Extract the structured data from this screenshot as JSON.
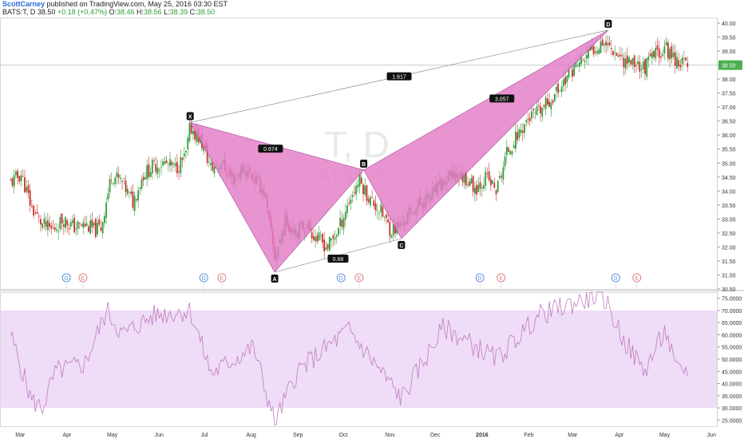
{
  "header": {
    "author": "ScottCarney",
    "published": " published on TradingView.com, May 25, 2016 03:30 EST",
    "symbol": "BATS:T, D",
    "last": "38.50",
    "change": "+0.18 (+0.47%)",
    "o_label": "O:",
    "o_value": "38.46",
    "h_label": "H:",
    "h_value": "38.56",
    "l_label": "L:",
    "l_value": "38.39",
    "c_label": "C:",
    "c_value": "38.50"
  },
  "colors": {
    "up": "#2e9d3a",
    "down": "#c9302c",
    "pattern_fill": "#e27cc7",
    "rsi_line": "#c07bbd",
    "rsi_band": "#efdcf7",
    "price_label_bg": "#4caf50"
  },
  "chart_data": [
    {
      "type": "candlestick",
      "title": "T, D",
      "watermark_title": "T, D",
      "watermark_subtitle": "AT&T INC",
      "ylim": [
        30.5,
        40.2
      ],
      "y_ticks": [
        "30.50",
        "31.00",
        "31.50",
        "32.00",
        "32.50",
        "33.00",
        "33.50",
        "34.00",
        "34.50",
        "35.00",
        "35.50",
        "36.00",
        "36.50",
        "37.00",
        "37.50",
        "38.00",
        "38.50",
        "39.00",
        "39.50",
        "40.00"
      ],
      "last_price_label": "38.50",
      "x_ticks": [
        "Mar",
        "Apr",
        "May",
        "Jun",
        "Jul",
        "Aug",
        "Sep",
        "Oct",
        "Nov",
        "Dec",
        "2016",
        "Feb",
        "Mar",
        "Apr",
        "May",
        "Jun"
      ],
      "pattern": {
        "name": "bat",
        "points": [
          {
            "label": "X",
            "date": "2015-06-29",
            "price": 36.45
          },
          {
            "label": "A",
            "date": "2015-08-24",
            "price": 31.1
          },
          {
            "label": "B",
            "date": "2015-10-22",
            "price": 34.75
          },
          {
            "label": "C",
            "date": "2015-11-16",
            "price": 32.3
          },
          {
            "label": "D",
            "date": "2016-04-01",
            "price": 39.75
          }
        ],
        "ratios": [
          {
            "label": "0.674",
            "between": "XA-AB"
          },
          {
            "label": "0.68",
            "between": "AB-BC"
          },
          {
            "label": "3.057",
            "between": "BC-CD"
          },
          {
            "label": "1.617",
            "between": "XA-XD"
          }
        ]
      },
      "events": [
        {
          "type": "D",
          "month": "Apr"
        },
        {
          "type": "E",
          "month": "Apr"
        },
        {
          "type": "D",
          "month": "Jul"
        },
        {
          "type": "E",
          "month": "Jul"
        },
        {
          "type": "D",
          "month": "Oct"
        },
        {
          "type": "E",
          "month": "Oct"
        },
        {
          "type": "D",
          "month": "Jan"
        },
        {
          "type": "E",
          "month": "Jan"
        },
        {
          "type": "D",
          "month": "Apr"
        },
        {
          "type": "E",
          "month": "Apr"
        }
      ],
      "close_path": [
        {
          "date": "2015-03-02",
          "close": 34.3
        },
        {
          "date": "2015-03-09",
          "close": 34.6
        },
        {
          "date": "2015-03-16",
          "close": 33.4
        },
        {
          "date": "2015-03-23",
          "close": 32.8
        },
        {
          "date": "2015-03-30",
          "close": 32.6
        },
        {
          "date": "2015-04-06",
          "close": 33.0
        },
        {
          "date": "2015-04-13",
          "close": 32.7
        },
        {
          "date": "2015-04-20",
          "close": 32.8
        },
        {
          "date": "2015-04-27",
          "close": 32.6
        },
        {
          "date": "2015-05-01",
          "close": 32.7
        },
        {
          "date": "2015-05-08",
          "close": 34.6
        },
        {
          "date": "2015-05-15",
          "close": 34.3
        },
        {
          "date": "2015-05-22",
          "close": 33.6
        },
        {
          "date": "2015-05-29",
          "close": 34.6
        },
        {
          "date": "2015-06-05",
          "close": 34.9
        },
        {
          "date": "2015-06-12",
          "close": 35.0
        },
        {
          "date": "2015-06-19",
          "close": 34.8
        },
        {
          "date": "2015-06-26",
          "close": 35.2
        },
        {
          "date": "2015-06-29",
          "close": 36.3
        },
        {
          "date": "2015-07-06",
          "close": 35.8
        },
        {
          "date": "2015-07-13",
          "close": 34.8
        },
        {
          "date": "2015-07-20",
          "close": 35.0
        },
        {
          "date": "2015-07-27",
          "close": 34.4
        },
        {
          "date": "2015-08-03",
          "close": 34.8
        },
        {
          "date": "2015-08-10",
          "close": 34.5
        },
        {
          "date": "2015-08-17",
          "close": 34.0
        },
        {
          "date": "2015-08-24",
          "close": 31.6
        },
        {
          "date": "2015-08-31",
          "close": 32.9
        },
        {
          "date": "2015-09-08",
          "close": 32.6
        },
        {
          "date": "2015-09-14",
          "close": 32.8
        },
        {
          "date": "2015-09-21",
          "close": 32.3
        },
        {
          "date": "2015-09-28",
          "close": 32.0
        },
        {
          "date": "2015-10-05",
          "close": 32.6
        },
        {
          "date": "2015-10-12",
          "close": 33.6
        },
        {
          "date": "2015-10-19",
          "close": 34.4
        },
        {
          "date": "2015-10-26",
          "close": 33.7
        },
        {
          "date": "2015-11-02",
          "close": 33.3
        },
        {
          "date": "2015-11-09",
          "close": 32.6
        },
        {
          "date": "2015-11-16",
          "close": 32.8
        },
        {
          "date": "2015-11-23",
          "close": 33.3
        },
        {
          "date": "2015-11-30",
          "close": 33.6
        },
        {
          "date": "2015-12-07",
          "close": 33.9
        },
        {
          "date": "2015-12-14",
          "close": 34.3
        },
        {
          "date": "2015-12-21",
          "close": 34.6
        },
        {
          "date": "2015-12-28",
          "close": 34.5
        },
        {
          "date": "2016-01-04",
          "close": 34.1
        },
        {
          "date": "2016-01-11",
          "close": 34.5
        },
        {
          "date": "2016-01-18",
          "close": 34.0
        },
        {
          "date": "2016-01-25",
          "close": 35.4
        },
        {
          "date": "2016-02-01",
          "close": 36.0
        },
        {
          "date": "2016-02-08",
          "close": 36.6
        },
        {
          "date": "2016-02-15",
          "close": 36.8
        },
        {
          "date": "2016-02-22",
          "close": 37.2
        },
        {
          "date": "2016-02-29",
          "close": 37.7
        },
        {
          "date": "2016-03-07",
          "close": 38.3
        },
        {
          "date": "2016-03-14",
          "close": 38.6
        },
        {
          "date": "2016-03-21",
          "close": 39.0
        },
        {
          "date": "2016-03-28",
          "close": 39.4
        },
        {
          "date": "2016-04-04",
          "close": 39.1
        },
        {
          "date": "2016-04-11",
          "close": 38.7
        },
        {
          "date": "2016-04-18",
          "close": 38.6
        },
        {
          "date": "2016-04-25",
          "close": 38.4
        },
        {
          "date": "2016-05-02",
          "close": 38.9
        },
        {
          "date": "2016-05-09",
          "close": 39.1
        },
        {
          "date": "2016-05-16",
          "close": 38.7
        },
        {
          "date": "2016-05-23",
          "close": 38.5
        }
      ]
    },
    {
      "type": "line",
      "indicator": "RSI",
      "ylim": [
        22.5,
        77.5
      ],
      "y_ticks": [
        "25.0000",
        "30.0000",
        "35.0000",
        "40.0000",
        "45.0000",
        "50.0000",
        "55.0000",
        "60.0000",
        "65.0000",
        "70.0000",
        "75.0000"
      ],
      "band": [
        30,
        70
      ],
      "values": [
        {
          "date": "2015-03-02",
          "value": 60
        },
        {
          "date": "2015-03-16",
          "value": 33
        },
        {
          "date": "2015-03-23",
          "value": 30
        },
        {
          "date": "2015-04-01",
          "value": 45
        },
        {
          "date": "2015-04-20",
          "value": 48
        },
        {
          "date": "2015-05-05",
          "value": 70
        },
        {
          "date": "2015-05-15",
          "value": 60
        },
        {
          "date": "2015-06-05",
          "value": 68
        },
        {
          "date": "2015-06-29",
          "value": 70
        },
        {
          "date": "2015-07-13",
          "value": 44
        },
        {
          "date": "2015-08-10",
          "value": 55
        },
        {
          "date": "2015-08-24",
          "value": 24
        },
        {
          "date": "2015-09-08",
          "value": 45
        },
        {
          "date": "2015-10-12",
          "value": 62
        },
        {
          "date": "2015-11-16",
          "value": 34
        },
        {
          "date": "2015-12-14",
          "value": 63
        },
        {
          "date": "2016-01-18",
          "value": 50
        },
        {
          "date": "2016-02-15",
          "value": 68
        },
        {
          "date": "2016-03-28",
          "value": 77
        },
        {
          "date": "2016-04-11",
          "value": 58
        },
        {
          "date": "2016-04-25",
          "value": 45
        },
        {
          "date": "2016-05-09",
          "value": 62
        },
        {
          "date": "2016-05-16",
          "value": 45
        },
        {
          "date": "2016-05-23",
          "value": 46
        }
      ]
    }
  ]
}
